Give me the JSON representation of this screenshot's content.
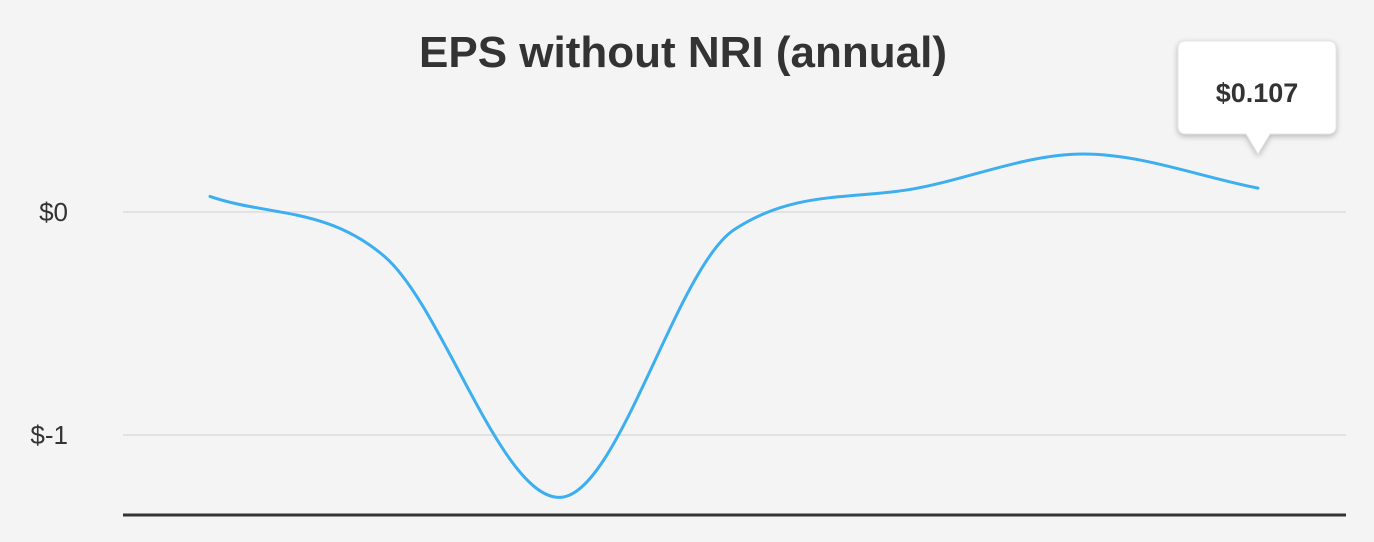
{
  "chart_data": {
    "type": "line",
    "title": "EPS without NRI (annual)",
    "xlabel": "",
    "ylabel": "",
    "ylim": [
      -1.35,
      0.45
    ],
    "y_ticks": [
      {
        "value": 0,
        "label": "$0"
      },
      {
        "value": -1,
        "label": "$-1"
      }
    ],
    "series": [
      {
        "values": [
          0.07,
          -0.2,
          -1.28,
          -0.08,
          0.1,
          0.26,
          0.107
        ],
        "color": "#3daef0"
      }
    ],
    "grid": true,
    "legend": "none",
    "tooltip": {
      "label": "$0.107",
      "point_index": 6
    }
  },
  "colors": {
    "background": "#f4f4f4",
    "line": "#3daef0",
    "grid": "#e2e2e2",
    "axis": "#333333",
    "text": "#333333"
  }
}
